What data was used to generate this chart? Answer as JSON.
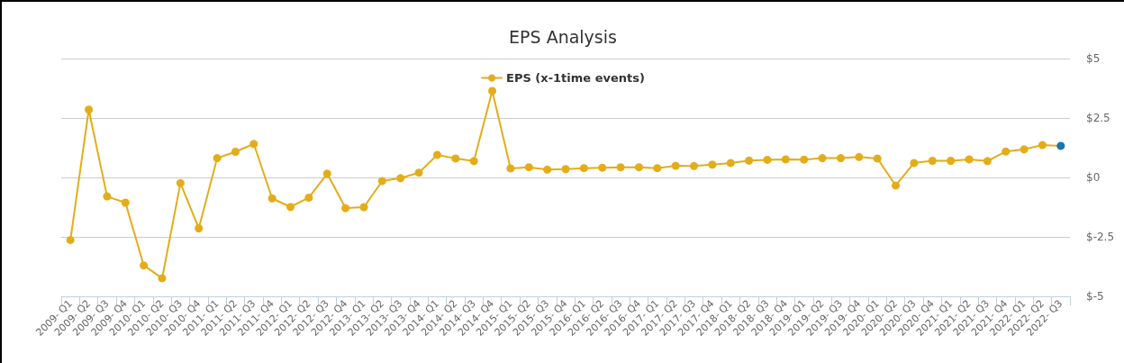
{
  "chart_data": {
    "type": "line",
    "title": "EPS Analysis",
    "categories": [
      "2009- Q1",
      "2009- Q2",
      "2009- Q3",
      "2009- Q4",
      "2010- Q1",
      "2010- Q2",
      "2010- Q3",
      "2010- Q4",
      "2011- Q1",
      "2011- Q2",
      "2011- Q3",
      "2011- Q4",
      "2012- Q1",
      "2012- Q2",
      "2012- Q3",
      "2012- Q4",
      "2013- Q1",
      "2013- Q2",
      "2013- Q3",
      "2013- Q4",
      "2014- Q1",
      "2014- Q2",
      "2014- Q3",
      "2014- Q4",
      "2015- Q1",
      "2015- Q2",
      "2015- Q3",
      "2015- Q4",
      "2016- Q1",
      "2016- Q2",
      "2016- Q3",
      "2016- Q4",
      "2017- Q1",
      "2017- Q2",
      "2017- Q3",
      "2017- Q4",
      "2018- Q1",
      "2018- Q2",
      "2018- Q3",
      "2018- Q4",
      "2019- Q1",
      "2019- Q2",
      "2019- Q3",
      "2019- Q4",
      "2020- Q1",
      "2020- Q2",
      "2020- Q3",
      "2020- Q4",
      "2021- Q1",
      "2021- Q2",
      "2021- Q3",
      "2021- Q4",
      "2022- Q1",
      "2022- Q2",
      "2022- Q3"
    ],
    "series": [
      {
        "name": "EPS (x-1time events)",
        "color": "#e3ad1a",
        "values": [
          -2.63,
          2.85,
          -0.8,
          -1.06,
          -3.7,
          -4.24,
          -0.24,
          -2.14,
          0.81,
          1.08,
          1.41,
          -0.88,
          -1.24,
          -0.85,
          0.16,
          -1.29,
          -1.25,
          -0.15,
          -0.03,
          0.2,
          0.95,
          0.8,
          0.69,
          3.64,
          0.38,
          0.43,
          0.33,
          0.35,
          0.39,
          0.41,
          0.43,
          0.43,
          0.39,
          0.49,
          0.48,
          0.54,
          0.61,
          0.71,
          0.74,
          0.76,
          0.75,
          0.81,
          0.81,
          0.86,
          0.8,
          -0.34,
          0.61,
          0.7,
          0.7,
          0.76,
          0.69,
          1.09,
          1.18,
          1.36,
          1.33
        ],
        "colors": [
          "#e3ad1a",
          "#e3ad1a",
          "#e3ad1a",
          "#e3ad1a",
          "#e3ad1a",
          "#e3ad1a",
          "#e3ad1a",
          "#e3ad1a",
          "#e3ad1a",
          "#e3ad1a",
          "#e3ad1a",
          "#e3ad1a",
          "#e3ad1a",
          "#e3ad1a",
          "#e3ad1a",
          "#e3ad1a",
          "#e3ad1a",
          "#e3ad1a",
          "#e3ad1a",
          "#e3ad1a",
          "#e3ad1a",
          "#e3ad1a",
          "#e3ad1a",
          "#e3ad1a",
          "#e3ad1a",
          "#e3ad1a",
          "#e3ad1a",
          "#e3ad1a",
          "#e3ad1a",
          "#e3ad1a",
          "#e3ad1a",
          "#e3ad1a",
          "#e3ad1a",
          "#e3ad1a",
          "#e3ad1a",
          "#e3ad1a",
          "#e3ad1a",
          "#e3ad1a",
          "#e3ad1a",
          "#e3ad1a",
          "#e3ad1a",
          "#e3ad1a",
          "#e3ad1a",
          "#e3ad1a",
          "#e3ad1a",
          "#e3ad1a",
          "#e3ad1a",
          "#e3ad1a",
          "#e3ad1a",
          "#e3ad1a",
          "#e3ad1a",
          "#e3ad1a",
          "#e3ad1a",
          "#e3ad1a",
          "#1a75b0"
        ]
      }
    ],
    "ylim": [
      -5,
      5
    ],
    "yticks": [
      {
        "value": -5,
        "label": "$-5"
      },
      {
        "value": -2.5,
        "label": "$-2.5"
      },
      {
        "value": 0,
        "label": "$0"
      },
      {
        "value": 2.5,
        "label": "$2.5"
      },
      {
        "value": 5,
        "label": "$5"
      }
    ],
    "grid": "y",
    "legend": "top",
    "marker": "circle",
    "line_style": "solid"
  }
}
